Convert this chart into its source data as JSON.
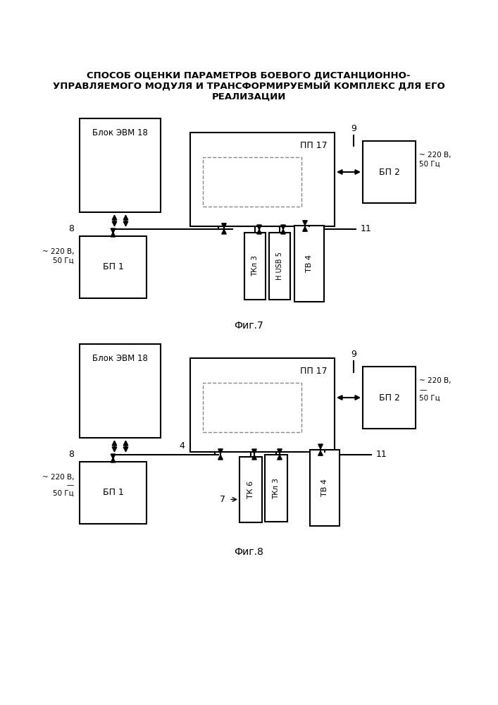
{
  "title_line1": "СПОСОБ ОЦЕНКИ ПАРАМЕТРОВ БОЕВОГО ДИСТАНЦИОННО-",
  "title_line2": "УПРАВЛЯЕМОГО МОДУЛЯ И ТРАНСФОРМИРУЕМЫЙ КОМПЛЕКС ДЛЯ ЕГО",
  "title_line3": "РЕАЛИЗАЦИИ",
  "fig7_label": "Фиг.7",
  "fig8_label": "Фиг.8",
  "bg_color": "#ffffff",
  "box_color": "#ffffff",
  "box_edge": "#000000",
  "text_color": "#000000",
  "tilde_220": "~ 220 В,",
  "hz50_7": "50 Гц",
  "hz50_8": "50 Гц",
  "dash_line": "—"
}
